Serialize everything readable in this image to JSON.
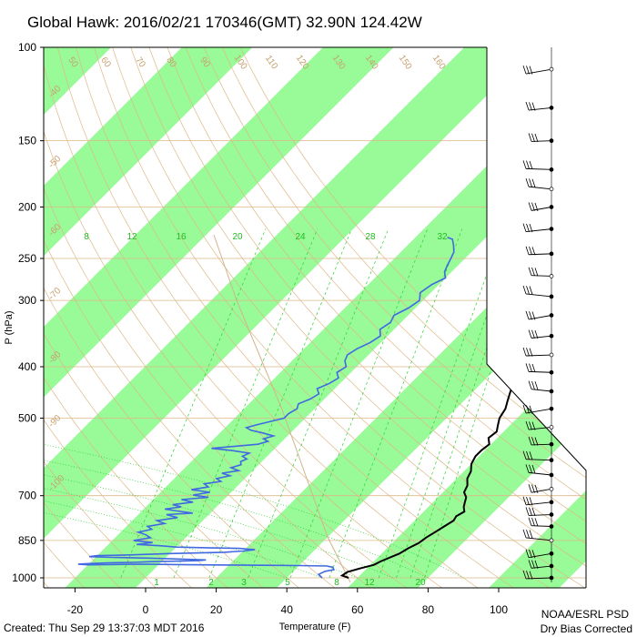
{
  "chart_data": {
    "type": "line",
    "title": "Global Hawk: 2016/02/21 170346(GMT) 32.90N 124.42W",
    "xlabel": "Temperature (F)",
    "ylabel": "P (hPa)",
    "xlim": [
      -28,
      110
    ],
    "ylim": [
      1030,
      100
    ],
    "x_ticks": [
      "-20",
      "0",
      "20",
      "40",
      "60",
      "80",
      "100"
    ],
    "y_ticks": [
      "100",
      "150",
      "200",
      "250",
      "300",
      "400",
      "500",
      "700",
      "850",
      "1000"
    ],
    "mixing_ratio_labels_top": [
      "8",
      "12",
      "16",
      "20",
      "24",
      "28",
      "32"
    ],
    "mixing_ratio_labels_bottom": [
      "1",
      "2",
      "3",
      "5",
      "8",
      "12",
      "20"
    ],
    "dry_adiabat_labels": [
      "50",
      "60",
      "70",
      "80",
      "90",
      "100",
      "110",
      "120",
      "130",
      "140",
      "150",
      "160"
    ],
    "isotherm_labels": [
      "-30",
      "-20",
      "-10",
      "0",
      "10",
      "20",
      "30"
    ],
    "left_isotherm_labels": [
      "-40",
      "-50",
      "-60",
      "-70",
      "-80",
      "-90",
      "-100"
    ],
    "series": [
      {
        "name": "Temperature",
        "color": "#000000",
        "points": [
          [
            57.5,
            1000
          ],
          [
            55,
            990
          ],
          [
            55.5,
            975
          ],
          [
            58,
            960
          ],
          [
            61,
            945
          ],
          [
            62,
            930
          ],
          [
            65,
            900
          ],
          [
            66,
            880
          ],
          [
            67.5,
            860
          ],
          [
            68,
            840
          ],
          [
            69,
            820
          ],
          [
            70,
            800
          ],
          [
            71,
            780
          ],
          [
            70.5,
            765
          ],
          [
            71.5,
            750
          ],
          [
            70,
            735
          ],
          [
            69,
            720
          ],
          [
            68,
            705
          ],
          [
            66,
            690
          ],
          [
            65,
            670
          ],
          [
            63,
            650
          ],
          [
            62,
            630
          ],
          [
            60,
            610
          ],
          [
            59,
            590
          ],
          [
            59,
            575
          ],
          [
            59.5,
            560
          ],
          [
            57.5,
            545
          ],
          [
            58,
            530
          ],
          [
            56.5,
            515
          ],
          [
            55,
            500
          ],
          [
            54,
            480
          ],
          [
            52.5,
            465
          ],
          [
            51,
            450
          ],
          [
            48,
            420
          ],
          [
            45,
            400
          ],
          [
            43,
            380
          ],
          [
            41,
            360
          ],
          [
            39,
            340
          ],
          [
            37.5,
            320
          ],
          [
            36.5,
            300
          ],
          [
            35,
            285
          ],
          [
            33.5,
            270
          ],
          [
            32,
            258
          ],
          [
            31.5,
            250
          ],
          [
            31,
            245
          ],
          [
            31.5,
            238
          ],
          [
            32,
            232
          ],
          [
            33,
            226
          ],
          [
            33.5,
            220
          ],
          [
            34,
            215
          ],
          [
            33.5,
            210
          ],
          [
            33,
            205
          ],
          [
            32.5,
            200
          ],
          [
            32,
            195
          ],
          [
            31.5,
            190
          ],
          [
            31,
            185
          ],
          [
            30.5,
            180
          ],
          [
            30.5,
            175
          ],
          [
            30,
            170
          ],
          [
            29.5,
            165
          ],
          [
            29,
            160
          ],
          [
            28.5,
            155
          ],
          [
            28,
            150
          ],
          [
            28.5,
            145
          ],
          [
            29,
            140
          ],
          [
            30,
            135
          ],
          [
            31.5,
            130
          ],
          [
            32.5,
            125
          ],
          [
            33,
            121
          ],
          [
            34,
            118
          ],
          [
            35,
            115
          ],
          [
            36,
            112
          ],
          [
            36.5,
            110
          ],
          [
            36.5,
            108
          ]
        ]
      },
      {
        "name": "Dew point",
        "color": "#4169e1",
        "points": [
          [
            50,
            1000
          ],
          [
            48,
            985
          ],
          [
            49,
            972
          ],
          [
            51,
            965
          ],
          [
            50,
            955
          ],
          [
            48,
            950
          ],
          [
            40,
            948
          ],
          [
            30,
            947
          ],
          [
            20,
            946
          ],
          [
            12,
            945
          ],
          [
            5,
            944
          ],
          [
            -2,
            943
          ],
          [
            -8,
            943
          ],
          [
            -15,
            944
          ],
          [
            -20,
            945
          ],
          [
            -23,
            942
          ],
          [
            -20,
            940
          ],
          [
            -15,
            937
          ],
          [
            -8,
            935
          ],
          [
            -3,
            932
          ],
          [
            5,
            930
          ],
          [
            10,
            928
          ],
          [
            12,
            925
          ],
          [
            5,
            922
          ],
          [
            -5,
            918
          ],
          [
            -15,
            915
          ],
          [
            -22,
            912
          ],
          [
            -20,
            908
          ],
          [
            -10,
            905
          ],
          [
            0,
            900
          ],
          [
            15,
            895
          ],
          [
            20,
            890
          ],
          [
            23,
            885
          ],
          [
            18,
            880
          ],
          [
            10,
            878
          ],
          [
            0,
            875
          ],
          [
            -5,
            870
          ],
          [
            -12,
            865
          ],
          [
            -8,
            858
          ],
          [
            -14,
            850
          ],
          [
            -10,
            840
          ],
          [
            -12,
            830
          ],
          [
            -15,
            820
          ],
          [
            -12,
            810
          ],
          [
            -14,
            800
          ],
          [
            -10,
            790
          ],
          [
            -13,
            780
          ],
          [
            -8,
            770
          ],
          [
            -12,
            760
          ],
          [
            -5,
            755
          ],
          [
            -10,
            748
          ],
          [
            -14,
            742
          ],
          [
            -10,
            735
          ],
          [
            -13,
            728
          ],
          [
            -8,
            720
          ],
          [
            -12,
            712
          ],
          [
            -5,
            705
          ],
          [
            -10,
            698
          ],
          [
            -6,
            690
          ],
          [
            -12,
            682
          ],
          [
            -8,
            674
          ],
          [
            -10,
            665
          ],
          [
            -6,
            658
          ],
          [
            -8,
            650
          ],
          [
            -5,
            642
          ],
          [
            -8,
            635
          ],
          [
            -4,
            628
          ],
          [
            -7,
            620
          ],
          [
            -5,
            612
          ],
          [
            -6,
            604
          ],
          [
            -5,
            597
          ],
          [
            -7,
            590
          ],
          [
            -6,
            582
          ],
          [
            -12,
            575
          ],
          [
            -18,
            570
          ],
          [
            -12,
            565
          ],
          [
            -6,
            560
          ],
          [
            -4,
            553
          ],
          [
            -6,
            547
          ],
          [
            -4,
            540
          ],
          [
            -8,
            533
          ],
          [
            -12,
            527
          ],
          [
            -14,
            521
          ],
          [
            -12,
            515
          ],
          [
            -10,
            510
          ],
          [
            -8,
            505
          ],
          [
            -6,
            500
          ],
          [
            -6,
            490
          ],
          [
            -5,
            480
          ],
          [
            -6,
            470
          ],
          [
            -4,
            460
          ],
          [
            -3,
            450
          ],
          [
            -5,
            440
          ],
          [
            -3,
            430
          ],
          [
            -2,
            420
          ],
          [
            -4,
            410
          ],
          [
            -3,
            400
          ],
          [
            -5,
            390
          ],
          [
            -6,
            380
          ],
          [
            -5,
            370
          ],
          [
            -3,
            360
          ],
          [
            -2,
            350
          ],
          [
            -4,
            340
          ],
          [
            -3,
            330
          ],
          [
            -4,
            320
          ],
          [
            -2,
            310
          ],
          [
            -1,
            300
          ],
          [
            -3,
            290
          ],
          [
            -2,
            280
          ],
          [
            0,
            272
          ],
          [
            -2,
            265
          ],
          [
            -3,
            258
          ],
          [
            -4,
            250
          ],
          [
            -5,
            243
          ],
          [
            -7,
            236
          ],
          [
            -9,
            230
          ],
          [
            -11,
            228
          ]
        ]
      }
    ],
    "wind_barb_levels": [
      110,
      130,
      150,
      170,
      185,
      200,
      220,
      245,
      270,
      295,
      320,
      350,
      380,
      410,
      445,
      480,
      520,
      560,
      600,
      640,
      680,
      720,
      760,
      800,
      850,
      900,
      950,
      1000
    ],
    "credits": {
      "created": "Created: Thu Sep 29 13:37:03 MDT 2016",
      "org": "NOAA/ESRL PSD",
      "note": "Dry Bias Corrected"
    },
    "colors": {
      "stripe": "#98fb98",
      "grid": "#deb887",
      "mixing": "#2fcf2f",
      "temperature": "#000000",
      "dewpoint": "#4169e1"
    }
  }
}
